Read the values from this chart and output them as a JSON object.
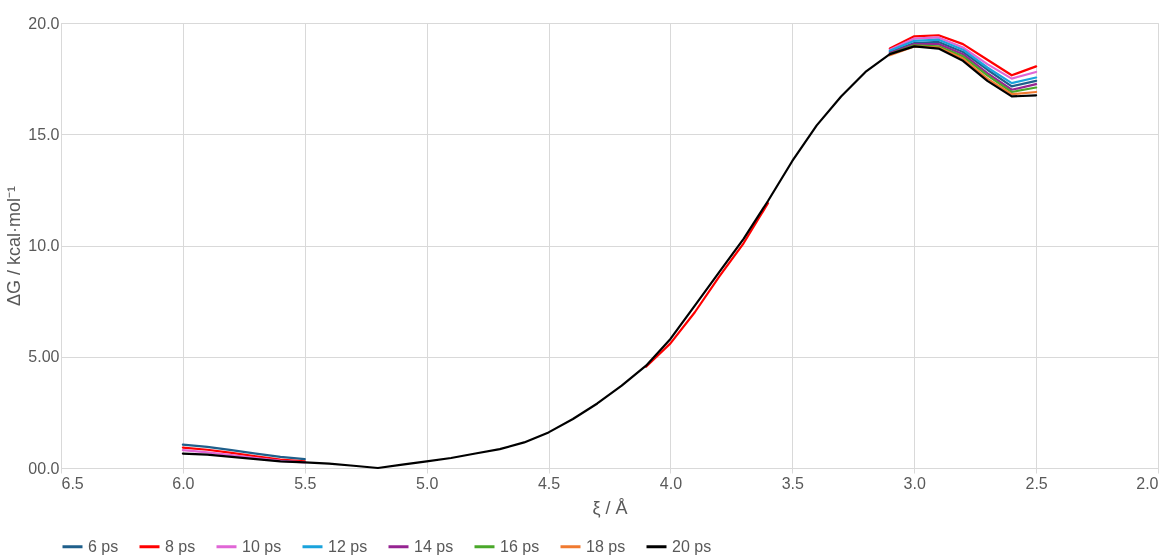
{
  "chart_data": {
    "type": "line",
    "xlabel": "ξ / Å",
    "ylabel": "ΔG / kcal·mol⁻¹",
    "x": [
      6.0,
      5.9,
      5.8,
      5.7,
      5.6,
      5.5,
      5.4,
      5.3,
      5.2,
      5.1,
      5.0,
      4.9,
      4.8,
      4.7,
      4.6,
      4.5,
      4.4,
      4.3,
      4.2,
      4.1,
      4.0,
      3.9,
      3.8,
      3.7,
      3.6,
      3.5,
      3.4,
      3.3,
      3.2,
      3.1,
      3.0,
      2.9,
      2.8,
      2.7,
      2.6,
      2.5
    ],
    "series": [
      {
        "name": "6 ps",
        "color": "#1f5f8b",
        "values": [
          1.05,
          0.95,
          0.8,
          0.65,
          0.5,
          0.4,
          null,
          null,
          null,
          null,
          null,
          null,
          null,
          null,
          null,
          null,
          null,
          null,
          null,
          null,
          null,
          null,
          null,
          null,
          null,
          null,
          null,
          null,
          null,
          18.7,
          19.1,
          19.15,
          18.7,
          17.9,
          17.15,
          17.4
        ]
      },
      {
        "name": "8 ps",
        "color": "#ff0000",
        "values": [
          0.92,
          0.82,
          0.68,
          0.52,
          0.38,
          0.3,
          null,
          null,
          null,
          null,
          null,
          null,
          null,
          null,
          null,
          null,
          null,
          null,
          null,
          4.55,
          5.6,
          7.0,
          8.6,
          10.1,
          11.9,
          null,
          null,
          null,
          null,
          18.85,
          19.4,
          19.45,
          19.05,
          18.35,
          17.65,
          18.05
        ]
      },
      {
        "name": "10 ps",
        "color": "#e066d6",
        "values": [
          0.8,
          0.7,
          0.58,
          0.45,
          0.32,
          0.25,
          null,
          null,
          null,
          null,
          null,
          null,
          null,
          null,
          null,
          null,
          null,
          null,
          null,
          null,
          null,
          null,
          null,
          null,
          null,
          null,
          null,
          null,
          null,
          18.8,
          19.3,
          19.35,
          18.9,
          18.15,
          17.5,
          17.8
        ]
      },
      {
        "name": "12 ps",
        "color": "#1aa3dc",
        "values": [
          null,
          null,
          null,
          null,
          null,
          null,
          null,
          null,
          null,
          null,
          null,
          null,
          null,
          null,
          null,
          null,
          null,
          null,
          null,
          null,
          null,
          null,
          null,
          null,
          null,
          null,
          null,
          null,
          null,
          18.75,
          19.2,
          19.25,
          18.8,
          18.0,
          17.3,
          17.55
        ]
      },
      {
        "name": "14 ps",
        "color": "#962492",
        "values": [
          null,
          null,
          null,
          null,
          null,
          null,
          null,
          null,
          null,
          null,
          null,
          null,
          null,
          null,
          null,
          null,
          null,
          null,
          null,
          null,
          null,
          null,
          null,
          null,
          null,
          null,
          null,
          null,
          null,
          18.65,
          19.05,
          19.05,
          18.6,
          17.75,
          17.0,
          17.25
        ]
      },
      {
        "name": "16 ps",
        "color": "#4aa82a",
        "values": [
          null,
          null,
          null,
          null,
          null,
          null,
          null,
          null,
          null,
          null,
          null,
          null,
          null,
          null,
          null,
          null,
          null,
          null,
          null,
          null,
          null,
          null,
          null,
          null,
          null,
          null,
          null,
          null,
          null,
          18.6,
          19.0,
          18.95,
          18.5,
          17.65,
          16.9,
          17.1
        ]
      },
      {
        "name": "18 ps",
        "color": "#f07a30",
        "values": [
          null,
          null,
          null,
          null,
          null,
          null,
          null,
          null,
          null,
          null,
          null,
          null,
          null,
          null,
          null,
          null,
          null,
          null,
          null,
          null,
          null,
          null,
          null,
          null,
          null,
          null,
          null,
          null,
          null,
          18.55,
          18.95,
          18.9,
          18.4,
          17.5,
          16.8,
          16.9
        ]
      },
      {
        "name": "20 ps",
        "color": "#000000",
        "values": [
          0.65,
          0.6,
          0.5,
          0.4,
          0.3,
          0.25,
          0.2,
          0.1,
          0.0,
          0.15,
          0.3,
          0.45,
          0.65,
          0.85,
          1.15,
          1.6,
          2.2,
          2.9,
          3.7,
          4.6,
          5.8,
          7.3,
          8.8,
          10.3,
          12.0,
          13.8,
          15.4,
          16.7,
          17.8,
          18.6,
          18.95,
          18.85,
          18.3,
          17.4,
          16.7,
          16.75
        ]
      }
    ],
    "xlim": [
      6.5,
      2.0
    ],
    "xticks": [
      {
        "value": 6.5,
        "label": "6.5"
      },
      {
        "value": 6.0,
        "label": "6.0"
      },
      {
        "value": 5.5,
        "label": "5.5"
      },
      {
        "value": 5.0,
        "label": "5.0"
      },
      {
        "value": 4.5,
        "label": "4.5"
      },
      {
        "value": 4.0,
        "label": "4.0"
      },
      {
        "value": 3.5,
        "label": "3.5"
      },
      {
        "value": 3.0,
        "label": "3.0"
      },
      {
        "value": 2.5,
        "label": "2.5"
      },
      {
        "value": 2.0,
        "label": "2.0"
      }
    ],
    "ylim": [
      0,
      20
    ],
    "yticks": [
      {
        "value": 0,
        "label": "00.0"
      },
      {
        "value": 5,
        "label": "5.00"
      },
      {
        "value": 10,
        "label": "10.0"
      },
      {
        "value": 15,
        "label": "15.0"
      },
      {
        "value": 20,
        "label": "20.0"
      }
    ],
    "grid": true,
    "legend": "bottom",
    "line_style": "solid",
    "marker": "none"
  }
}
